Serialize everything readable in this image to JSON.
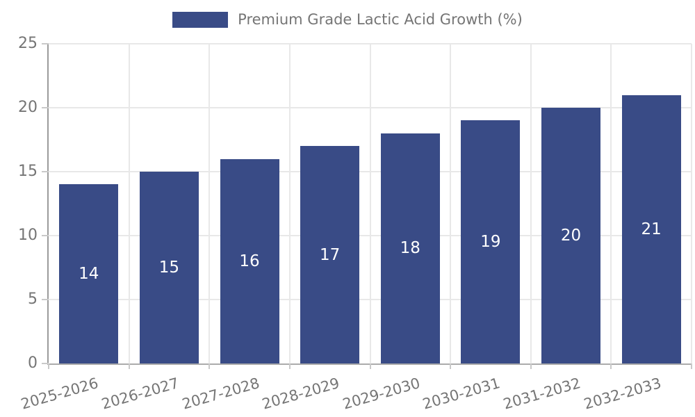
{
  "chart_data": {
    "type": "bar",
    "legend": "Premium Grade Lactic Acid Growth (%)",
    "legend_position": "top",
    "categories": [
      "2025-2026",
      "2026-2027",
      "2027-2028",
      "2028-2029",
      "2029-2030",
      "2030-2031",
      "2031-2032",
      "2032-2033"
    ],
    "values": [
      14,
      15,
      16,
      17,
      18,
      19,
      20,
      21
    ],
    "title": "",
    "xlabel": "",
    "ylabel": "",
    "ylim": [
      0,
      25
    ],
    "yticks": [
      0,
      5,
      10,
      15,
      20,
      25
    ],
    "grid": true,
    "bar_color": "#394b86",
    "bar_label_color": "#ffffff",
    "axis_text_color": "#757575",
    "gridline_color": "#e8e8e8",
    "axis_line_color": "#9b9b9b"
  }
}
